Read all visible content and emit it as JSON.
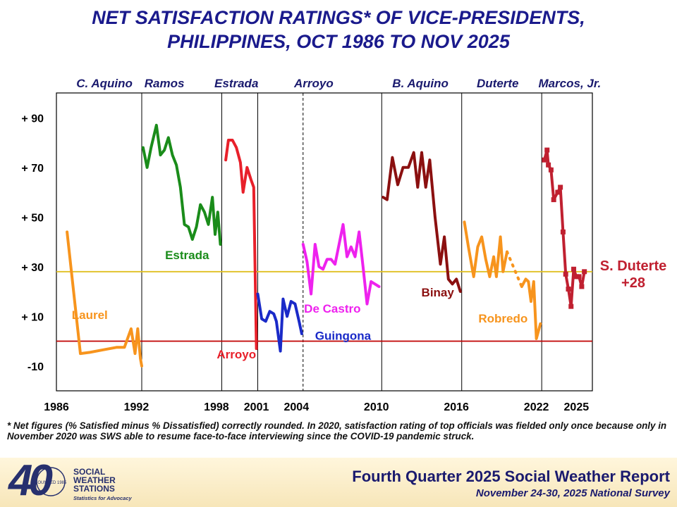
{
  "header": {
    "title_line1": "NET SATISFACTION RATINGS* OF VICE-PRESIDENTS,",
    "title_line2": "PHILIPPINES, OCT 1986 TO NOV 2025"
  },
  "footnote": "* Net figures (% Satisfied minus % Dissatisfied) correctly rounded. In 2020, satisfaction rating of top officials was fielded only once because only in November 2020 was SWS able to resume face-to-face interviewing since the COVID-19 pandemic struck.",
  "footer": {
    "report_title": "Fourth Quarter 2025 Social Weather Report",
    "report_subtitle": "November 24-30, 2025 National Survey",
    "logo": {
      "big": "40",
      "name_line1": "SOCIAL",
      "name_line2": "WEATHER",
      "name_line3": "STATIONS",
      "tagline": "Statistics for Advocacy",
      "seal": "FOUNDED 1985"
    }
  },
  "chart_data": {
    "type": "line",
    "ylim": [
      -20,
      100
    ],
    "xlim": [
      1986,
      2026.2
    ],
    "y_ticks": [
      {
        "value": 90,
        "label": "+ 90"
      },
      {
        "value": 70,
        "label": "+ 70"
      },
      {
        "value": 50,
        "label": "+ 50"
      },
      {
        "value": 30,
        "label": "+ 30"
      },
      {
        "value": 10,
        "label": "+ 10"
      },
      {
        "value": -10,
        "label": "-10"
      }
    ],
    "x_ticks": [
      {
        "value": 1986,
        "label": "1986"
      },
      {
        "value": 1992,
        "label": "1992"
      },
      {
        "value": 1998,
        "label": "1998"
      },
      {
        "value": 2001,
        "label": "2001"
      },
      {
        "value": 2004,
        "label": "2004"
      },
      {
        "value": 2010,
        "label": "2010"
      },
      {
        "value": 2016,
        "label": "2016"
      },
      {
        "value": 2022,
        "label": "2022"
      },
      {
        "value": 2025,
        "label": "2025"
      }
    ],
    "term_dividers": [
      {
        "x": 1992.4,
        "style": "solid"
      },
      {
        "x": 1998.4,
        "style": "solid"
      },
      {
        "x": 2001.1,
        "style": "solid"
      },
      {
        "x": 2004.5,
        "style": "dashed"
      },
      {
        "x": 2010.4,
        "style": "solid"
      },
      {
        "x": 2016.4,
        "style": "solid"
      },
      {
        "x": 2022.4,
        "style": "solid"
      }
    ],
    "administrations": [
      {
        "label": "C. Aquino",
        "x": 1989.6
      },
      {
        "label": "Ramos",
        "x": 1994.1
      },
      {
        "label": "Estrada",
        "x": 1999.5
      },
      {
        "label": "Arroyo",
        "x": 2005.3
      },
      {
        "label": "B. Aquino",
        "x": 2013.3
      },
      {
        "label": "Duterte",
        "x": 2019.1
      },
      {
        "label": "Marcos, Jr.",
        "x": 2024.5
      }
    ],
    "reference_lines": [
      {
        "y": 0,
        "color": "#c00000"
      },
      {
        "y": 28,
        "color": "#e0c020"
      }
    ],
    "series": [
      {
        "name": "Laurel",
        "color": "#f7941d",
        "label_x": 1988.5,
        "label_y": 9,
        "x": [
          1986.8,
          1987.8,
          1988.5,
          1989.5,
          1990.5,
          1991.1,
          1991.6,
          1991.9,
          1992.1,
          1992.3,
          1992.4
        ],
        "y": [
          44,
          -5,
          -4.5,
          -3.5,
          -2.5,
          -2.5,
          5,
          -5,
          5,
          -7,
          -10
        ]
      },
      {
        "name": "Estrada",
        "color": "#1a8c1a",
        "label_x": 1995.8,
        "label_y": 33,
        "x": [
          1992.5,
          1992.8,
          1993.1,
          1993.5,
          1993.8,
          1994.1,
          1994.4,
          1994.7,
          1995.0,
          1995.3,
          1995.6,
          1995.9,
          1996.2,
          1996.5,
          1996.8,
          1997.1,
          1997.4,
          1997.7,
          1997.9,
          1998.1,
          1998.3
        ],
        "y": [
          78,
          70,
          78,
          87,
          75,
          77,
          82,
          75,
          71,
          62,
          47,
          46,
          41,
          46,
          55,
          52,
          47,
          58,
          43,
          52,
          39
        ]
      },
      {
        "name": "Arroyo",
        "color": "#e8202a",
        "label_x": 1999.5,
        "label_y": -7,
        "x": [
          1998.7,
          1998.9,
          1999.2,
          1999.5,
          1999.8,
          2000.0,
          2000.3,
          2000.6,
          2000.8,
          2001.0
        ],
        "y": [
          73,
          81,
          81,
          78,
          72,
          60,
          70,
          65,
          62,
          -3
        ]
      },
      {
        "name": "Guingona",
        "color": "#1a2ac8",
        "label_x": 2007.5,
        "label_y": 0.5,
        "x": [
          2001.1,
          2001.4,
          2001.7,
          2002.0,
          2002.3,
          2002.5,
          2002.8,
          2003.0,
          2003.3,
          2003.6,
          2003.9,
          2004.2,
          2004.4
        ],
        "y": [
          19,
          9,
          8,
          12,
          11,
          8,
          -4,
          17,
          10,
          16,
          15,
          8,
          3
        ]
      },
      {
        "name": "De Castro",
        "color": "#ee22ee",
        "label_x": 2006.7,
        "label_y": 11.5,
        "x": [
          2004.5,
          2004.8,
          2005.1,
          2005.4,
          2005.7,
          2006.0,
          2006.3,
          2006.6,
          2006.9,
          2007.2,
          2007.5,
          2007.8,
          2008.1,
          2008.4,
          2008.7,
          2009.0,
          2009.3,
          2009.6,
          2009.9,
          2010.2
        ],
        "y": [
          39,
          32,
          19,
          39,
          30,
          29,
          33,
          33,
          31,
          39,
          47,
          34,
          38,
          34,
          44,
          30,
          15,
          24,
          23,
          22
        ]
      },
      {
        "name": "Binay",
        "color": "#8b1010",
        "label_x": 2014.6,
        "label_y": 18,
        "x": [
          2010.5,
          2010.8,
          2011.2,
          2011.6,
          2012.0,
          2012.4,
          2012.8,
          2013.1,
          2013.4,
          2013.7,
          2014.0,
          2014.4,
          2014.8,
          2015.1,
          2015.4,
          2015.7,
          2016.0,
          2016.3
        ],
        "y": [
          58,
          57,
          74,
          63,
          70,
          70,
          76,
          62,
          76,
          62,
          73,
          50,
          31,
          42,
          25,
          23,
          25,
          20
        ]
      },
      {
        "name": "Robredo",
        "color": "#f7941d",
        "label_x": 2019.5,
        "label_y": 7.5,
        "x": [
          2016.6,
          2016.9,
          2017.3,
          2017.6,
          2017.9,
          2018.2,
          2018.5,
          2018.8,
          2019.0,
          2019.3,
          2019.5,
          2019.8
        ],
        "y": [
          48,
          38,
          26,
          38,
          42,
          33,
          26,
          34,
          26,
          42,
          28,
          36
        ]
      },
      {
        "name": "Robredo (2020)",
        "color": "#f7941d",
        "dashed": true,
        "x": [
          2019.8,
          2020.9
        ],
        "y": [
          36,
          22
        ]
      },
      {
        "name": "Robredo (2021-22)",
        "color": "#f7941d",
        "x": [
          2020.9,
          2021.2,
          2021.4,
          2021.6,
          2021.8,
          2022.0,
          2022.3
        ],
        "y": [
          22,
          25,
          24,
          16,
          24,
          1,
          7
        ]
      },
      {
        "name": "S. Duterte",
        "color": "#c02030",
        "markers": true,
        "x": [
          2022.6,
          2022.8,
          2022.9,
          2023.1,
          2023.3,
          2023.6,
          2023.8,
          2024.0,
          2024.2,
          2024.4,
          2024.6,
          2024.8,
          2025.0,
          2025.2,
          2025.4,
          2025.6
        ],
        "y": [
          73,
          77,
          71,
          69,
          57,
          60,
          62,
          44,
          27,
          21,
          14,
          29,
          26,
          26,
          22,
          28
        ]
      }
    ],
    "callout": {
      "line1": "S. Duterte",
      "line2": "+28",
      "color": "#c02030"
    }
  }
}
